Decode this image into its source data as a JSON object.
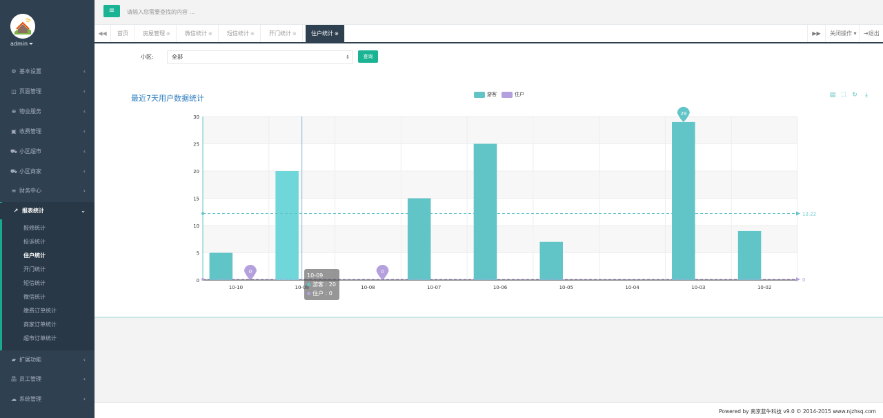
{
  "sidebar": {
    "user": "admin",
    "items": [
      {
        "label": "基本设置",
        "icon": "gear-icon",
        "glyph": "⚙"
      },
      {
        "label": "页面管理",
        "icon": "columns-icon",
        "glyph": "◫"
      },
      {
        "label": "物业服务",
        "icon": "globe-icon",
        "glyph": "⊕"
      },
      {
        "label": "收费管理",
        "icon": "money-icon",
        "glyph": "▣"
      },
      {
        "label": "小区超市",
        "icon": "cart-icon",
        "glyph": "⛟"
      },
      {
        "label": "小区商家",
        "icon": "truck-icon",
        "glyph": "⛟"
      },
      {
        "label": "财务中心",
        "icon": "database-icon",
        "glyph": "≡"
      },
      {
        "label": "报表统计",
        "icon": "line-chart-icon",
        "glyph": "↗"
      },
      {
        "label": "扩展功能",
        "icon": "folder-icon",
        "glyph": "▰"
      },
      {
        "label": "员工管理",
        "icon": "sitemap-icon",
        "glyph": "品"
      },
      {
        "label": "系统管理",
        "icon": "cloud-icon",
        "glyph": "☁"
      }
    ],
    "sub_items": [
      "报修统计",
      "投诉统计",
      "住户统计",
      "开门统计",
      "短信统计",
      "微信统计",
      "缴费订单统计",
      "商家订单统计",
      "超市订单统计"
    ]
  },
  "topbar": {
    "menu_glyph": "≡",
    "search_placeholder": "请输入您需要查找的内容 ..."
  },
  "tabs": {
    "nav_left": "◀◀",
    "items": [
      "首页",
      "房屋管理",
      "微信统计",
      "短信统计",
      "开门统计",
      "住户统计"
    ],
    "close_glyph": "⊗",
    "nav_right": "▶▶",
    "close_ops": "关闭操作",
    "logout": "退出"
  },
  "filter": {
    "label": "小区:",
    "selected": "全部",
    "button": "查询"
  },
  "chart_data": {
    "type": "bar",
    "title": "最近7天用户数据统计",
    "categories": [
      "10-10",
      "10-09",
      "10-08",
      "10-07",
      "10-06",
      "10-05",
      "10-04",
      "10-03",
      "10-02"
    ],
    "series": [
      {
        "name": "游客",
        "color": "#61c4c7",
        "values": [
          5,
          20,
          0,
          15,
          25,
          7,
          0,
          29,
          9
        ]
      },
      {
        "name": "住户",
        "color": "#b5a0de",
        "values": [
          0,
          0,
          0,
          0,
          0,
          0,
          0,
          0,
          0
        ]
      }
    ],
    "ylim": [
      0,
      30
    ],
    "yticks": [
      0,
      5,
      10,
      15,
      20,
      25,
      30
    ],
    "mark_line_average": 12.22,
    "mark_line_average_label": "12.22",
    "mark_line_zero_label": "0",
    "mark_point_max": {
      "series": "游客",
      "category": "10-03",
      "value": 29,
      "label": "29"
    },
    "mark_point_min": [
      {
        "series": "住户",
        "category": "10-10",
        "value": 0,
        "label": "0"
      },
      {
        "series": "住户",
        "category": "10-08",
        "value": 0,
        "label": "0"
      }
    ],
    "grid": true,
    "legend_position": "top-center",
    "highlighted_category": "10-09",
    "tooltip": {
      "title": "10-09",
      "rows": [
        "游客 : 20",
        "住户 : 0"
      ]
    }
  },
  "toolbox": [
    {
      "icon": "data-view-icon",
      "glyph": "▤"
    },
    {
      "icon": "line-switch-icon",
      "glyph": "⛶"
    },
    {
      "icon": "refresh-icon",
      "glyph": "↻"
    },
    {
      "icon": "download-icon",
      "glyph": "⤓"
    }
  ],
  "footer": {
    "text": "Powered by 南京蓝牛科技 v9.0 © 2014-2015 www.njzhsq.com"
  },
  "colors": {
    "sidebar_bg": "#2f4050",
    "accent": "#1ab394",
    "bar_primary": "#61c4c7",
    "bar_secondary": "#b5a0de",
    "title_blue": "#2b7bbd"
  }
}
